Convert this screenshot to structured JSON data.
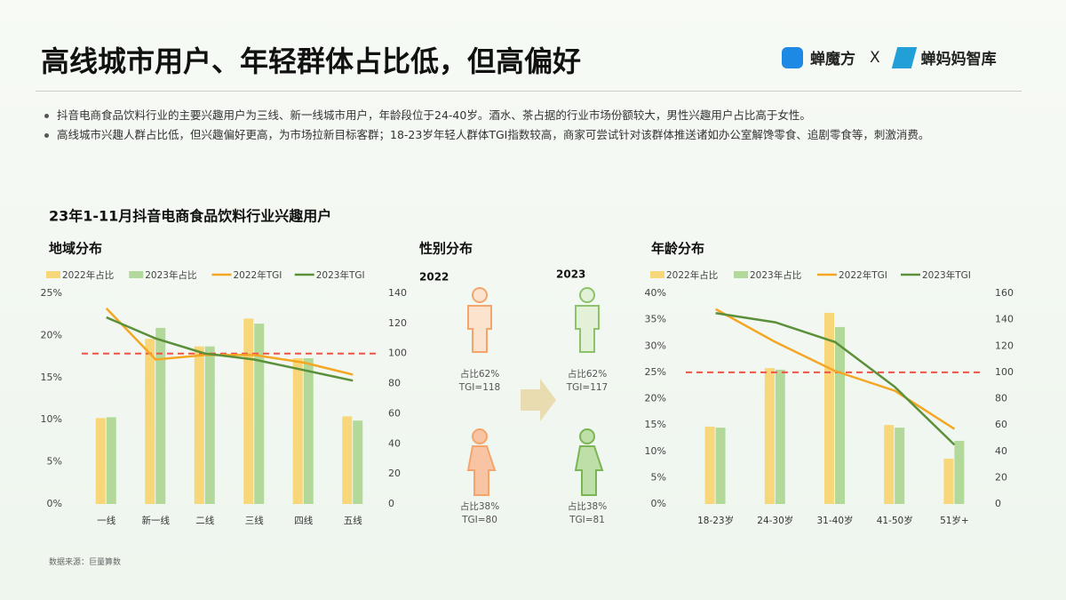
{
  "header": {
    "title": "高线城市用户、年轻群体占比低，但高偏好",
    "logo_left": "蝉魔方",
    "logo_sep": "X",
    "logo_right": "蝉妈妈智库"
  },
  "bullets": [
    "抖音电商食品饮料行业的主要兴趣用户为三线、新一线城市用户，年龄段位于24-40岁。酒水、茶占据的行业市场份额较大，男性兴趣用户占比高于女性。",
    "高线城市兴趣人群占比低，但兴趣偏好更高，为市场拉新目标客群；18-23岁年轻人群体TGI指数较高，商家可尝试针对该群体推送诸如办公室解馋零食、追剧零食等，刺激消费。"
  ],
  "section_title": "23年1-11月抖音电商食品饮料行业兴趣用户",
  "chart_data": [
    {
      "type": "combo",
      "title": "地域分布",
      "categories": [
        "一线",
        "新一线",
        "二线",
        "三线",
        "四线",
        "五线"
      ],
      "ylim": [
        0,
        25
      ],
      "yticks": [
        {
          "value": 0,
          "label": "0%"
        },
        {
          "value": 5,
          "label": "5%"
        },
        {
          "value": 10,
          "label": "10%"
        },
        {
          "value": 15,
          "label": "15%"
        },
        {
          "value": 20,
          "label": "20%"
        },
        {
          "value": 25,
          "label": "25%"
        }
      ],
      "y2lim": [
        0,
        140
      ],
      "y2ticks": [
        0,
        20,
        40,
        60,
        80,
        100,
        120,
        140
      ],
      "reference_line": {
        "axis": "y2",
        "value": 100,
        "color": "#e8564a"
      },
      "series": [
        {
          "name": "2022年占比",
          "type": "bar",
          "color": "#f8d67a",
          "values": [
            10.2,
            19.6,
            18.7,
            22.0,
            17.3,
            10.4
          ]
        },
        {
          "name": "2023年占比",
          "type": "bar",
          "color": "#b3d99a",
          "values": [
            10.3,
            20.9,
            18.7,
            21.4,
            17.3,
            9.9
          ]
        },
        {
          "name": "2022年TGI",
          "type": "line",
          "axis": "y2",
          "color": "#f5a623",
          "values": [
            130,
            96,
            99,
            99,
            94,
            86
          ]
        },
        {
          "name": "2023年TGI",
          "type": "line",
          "axis": "y2",
          "color": "#5b8f3a",
          "values": [
            124,
            110,
            100,
            96,
            89,
            82
          ]
        }
      ]
    },
    {
      "type": "combo",
      "title": "年龄分布",
      "categories": [
        "18-23岁",
        "24-30岁",
        "31-40岁",
        "41-50岁",
        "51岁+"
      ],
      "ylim": [
        0,
        40
      ],
      "yticks": [
        {
          "value": 0,
          "label": "0%"
        },
        {
          "value": 5,
          "label": "5%"
        },
        {
          "value": 10,
          "label": "10%"
        },
        {
          "value": 15,
          "label": "15%"
        },
        {
          "value": 20,
          "label": "20%"
        },
        {
          "value": 25,
          "label": "25%"
        },
        {
          "value": 30,
          "label": "30%"
        },
        {
          "value": 35,
          "label": "35%"
        },
        {
          "value": 40,
          "label": "40%"
        }
      ],
      "y2lim": [
        0,
        160
      ],
      "y2ticks": [
        0,
        20,
        40,
        60,
        80,
        100,
        120,
        140,
        160
      ],
      "reference_line": {
        "axis": "y2",
        "value": 100,
        "color": "#e8564a"
      },
      "series": [
        {
          "name": "2022年占比",
          "type": "bar",
          "color": "#f8d67a",
          "values": [
            14.7,
            25.8,
            36.3,
            15.0,
            8.6
          ]
        },
        {
          "name": "2023年占比",
          "type": "bar",
          "color": "#b3d99a",
          "values": [
            14.5,
            25.5,
            33.6,
            14.5,
            12.0
          ]
        },
        {
          "name": "2022年TGI",
          "type": "line",
          "axis": "y2",
          "color": "#f5a623",
          "values": [
            148,
            123,
            101,
            86,
            57
          ]
        },
        {
          "name": "2023年TGI",
          "type": "line",
          "axis": "y2",
          "color": "#5b8f3a",
          "values": [
            145,
            138,
            123,
            89,
            45
          ]
        }
      ]
    }
  ],
  "gender": {
    "title": "性别分布",
    "year_2022": "2022",
    "year_2023": "2023",
    "male_2022": {
      "share": "占比62%",
      "tgi": "TGI=118"
    },
    "male_2023": {
      "share": "占比62%",
      "tgi": "TGI=117"
    },
    "female_2022": {
      "share": "占比38%",
      "tgi": "TGI=80"
    },
    "female_2023": {
      "share": "占比38%",
      "tgi": "TGI=81"
    }
  },
  "source": "数据来源：巨量算数"
}
